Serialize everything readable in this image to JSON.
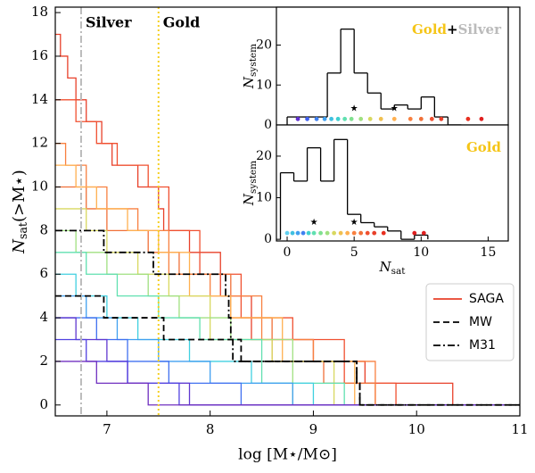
{
  "chart_data": {
    "type": "step",
    "xlabel": "log [M⋆/M⊙]",
    "ylabel": {
      "base": "N",
      "sub": "sat",
      "rest": "(>M⋆)"
    },
    "xlim": [
      6.5,
      11
    ],
    "xticks": [
      7,
      8,
      9,
      10,
      11
    ],
    "ylim": [
      -0.5,
      18.25
    ],
    "yticks": [
      0,
      2,
      4,
      6,
      8,
      10,
      12,
      14,
      16,
      18
    ],
    "thresholds": [
      {
        "name": "Silver",
        "x": 6.75,
        "color": "#bbbbbb",
        "dash": "dashdot"
      },
      {
        "name": "Gold",
        "x": 7.5,
        "color": "#f5d020",
        "dash": "dotted"
      }
    ],
    "saga": {
      "name": "SAGA",
      "color": "#e8402a",
      "curves": [
        {
          "color": "#e8402a",
          "x": [
            6.5,
            6.55,
            6.62,
            6.7,
            6.8,
            6.95,
            7.05,
            7.3,
            7.5,
            7.55,
            7.8,
            8.1,
            8.4,
            9.0,
            9.5,
            10.35
          ],
          "values": [
            17,
            16,
            15,
            14,
            13,
            12,
            11,
            10,
            9,
            8,
            7,
            5,
            3,
            2,
            1,
            0
          ]
        },
        {
          "color": "#f05030",
          "x": [
            6.5,
            6.7,
            6.9,
            7.1,
            7.4,
            7.6,
            7.9,
            8.3,
            8.8,
            9.3,
            9.8
          ],
          "values": [
            14,
            13,
            12,
            11,
            10,
            8,
            6,
            4,
            3,
            1,
            0
          ]
        },
        {
          "color": "#f07038",
          "x": [
            6.5,
            6.8,
            7.0,
            7.4,
            7.7,
            8.2,
            8.6,
            9.1,
            9.6
          ],
          "values": [
            10,
            9,
            8,
            7,
            6,
            4,
            2,
            1,
            0
          ]
        },
        {
          "color": "#f88040",
          "x": [
            6.5,
            6.6,
            6.8,
            7.0,
            7.3,
            7.6,
            8.0,
            8.5,
            9.0,
            9.6
          ],
          "values": [
            12,
            11,
            10,
            9,
            8,
            6,
            5,
            3,
            2,
            0
          ]
        },
        {
          "color": "#ffb050",
          "x": [
            6.5,
            6.7,
            6.9,
            7.2,
            7.5,
            7.8,
            8.2,
            8.7,
            9.4
          ],
          "values": [
            11,
            10,
            9,
            8,
            7,
            5,
            4,
            2,
            0
          ]
        },
        {
          "color": "#d8d860",
          "x": [
            6.5,
            6.8,
            7.0,
            7.3,
            7.6,
            8.0,
            8.6,
            9.2
          ],
          "values": [
            9,
            8,
            7,
            6,
            5,
            3,
            2,
            0
          ]
        },
        {
          "color": "#a0e080",
          "x": [
            6.5,
            6.7,
            7.0,
            7.4,
            7.7,
            8.2,
            8.8
          ],
          "values": [
            8,
            7,
            6,
            5,
            4,
            3,
            0
          ]
        },
        {
          "color": "#60e0b0",
          "x": [
            6.5,
            6.8,
            7.1,
            7.5,
            7.9,
            8.5,
            9.3
          ],
          "values": [
            7,
            6,
            5,
            4,
            3,
            1,
            0
          ]
        },
        {
          "color": "#40d0e0",
          "x": [
            6.5,
            6.7,
            7.0,
            7.3,
            7.8,
            8.4,
            9.0
          ],
          "values": [
            6,
            5,
            4,
            3,
            2,
            1,
            0
          ]
        },
        {
          "color": "#40a0f0",
          "x": [
            6.5,
            6.8,
            7.1,
            7.5,
            8.0,
            8.8
          ],
          "values": [
            5,
            4,
            3,
            2,
            1,
            0
          ]
        },
        {
          "color": "#4070f0",
          "x": [
            6.5,
            6.9,
            7.2,
            7.6,
            8.3
          ],
          "values": [
            4,
            3,
            2,
            1,
            0
          ]
        },
        {
          "color": "#6038d0",
          "x": [
            6.5,
            6.7,
            7.0,
            7.2,
            7.8
          ],
          "values": [
            4,
            3,
            2,
            1,
            0
          ]
        },
        {
          "color": "#5040e0",
          "x": [
            6.5,
            6.8,
            7.2,
            7.7
          ],
          "values": [
            3,
            2,
            1,
            0
          ]
        },
        {
          "color": "#7030c0",
          "x": [
            6.5,
            6.9,
            7.4
          ],
          "values": [
            2,
            1,
            0
          ]
        }
      ]
    },
    "series": [
      {
        "name": "MW",
        "color": "#000000",
        "dash": "dashed",
        "x": [
          6.5,
          6.97,
          7.55,
          8.3,
          9.42,
          9.45
        ],
        "values": [
          5,
          4,
          3,
          2,
          1,
          0
        ]
      },
      {
        "name": "M31",
        "color": "#000000",
        "dash": "dashdot",
        "x": [
          6.5,
          6.97,
          7.45,
          8.15,
          8.18,
          8.2,
          8.22,
          9.42,
          9.45
        ],
        "values": [
          8,
          7,
          6,
          5,
          4,
          3,
          2,
          1,
          0
        ]
      }
    ],
    "insets": [
      {
        "type": "histogram",
        "title_parts": [
          {
            "text": "Gold",
            "color": "#f5c518"
          },
          {
            "text": "+",
            "color": "#000000"
          },
          {
            "text": "Silver",
            "color": "#bbbbbb"
          }
        ],
        "ylabel": {
          "base": "N",
          "sub": "system"
        },
        "xlim": [
          -0.8,
          16.5
        ],
        "ylim": [
          0,
          29.5
        ],
        "yticks": [
          0,
          10,
          20
        ],
        "bins": [
          0,
          1,
          2,
          3,
          4,
          5,
          6,
          7,
          8,
          9,
          10,
          11,
          12,
          13
        ],
        "counts": [
          2,
          2,
          2,
          13,
          24,
          13,
          8,
          4,
          5,
          4,
          7,
          2,
          0
        ],
        "points": {
          "x": [
            0.8,
            1.5,
            2.2,
            2.8,
            3.3,
            3.8,
            4.3,
            4.8,
            5.5,
            6.2,
            7,
            8,
            9.2,
            10,
            10.8,
            11.5,
            13.5,
            14.5
          ],
          "y": [
            1.5,
            1.5,
            1.5,
            1.5,
            1.5,
            1.5,
            1.5,
            1.5,
            1.5,
            1.5,
            1.5,
            1.5,
            1.5,
            1.5,
            1.5,
            1.5,
            1.5,
            1.5
          ],
          "colors": [
            "#6030d0",
            "#4060f0",
            "#4080f0",
            "#40a0f0",
            "#40c0e0",
            "#40d0d0",
            "#60e0b0",
            "#80e090",
            "#a0e080",
            "#d8d860",
            "#f0c050",
            "#ffb050",
            "#f88040",
            "#f07038",
            "#f05030",
            "#e8402a",
            "#e83020",
            "#e02020"
          ]
        },
        "stars": {
          "x": [
            5,
            8
          ],
          "y": [
            4,
            4
          ]
        }
      },
      {
        "type": "histogram",
        "title_parts": [
          {
            "text": "Gold",
            "color": "#f5c518"
          }
        ],
        "ylabel": {
          "base": "N",
          "sub": "system"
        },
        "xlabel": {
          "base": "N",
          "sub": "sat"
        },
        "xlim": [
          -0.8,
          16.5
        ],
        "xticks": [
          0,
          5,
          10,
          15
        ],
        "ylim": [
          -0.4,
          27.5
        ],
        "yticks": [
          0,
          10,
          20
        ],
        "bins": [
          -0.5,
          0.5,
          1.5,
          2.5,
          3.5,
          4.5,
          5.5,
          6.5,
          7.5,
          8.5,
          9.5,
          10.5
        ],
        "counts": [
          16,
          14,
          22,
          14,
          24,
          6,
          4,
          3,
          2,
          0,
          1
        ],
        "points": {
          "x": [
            0,
            0.4,
            0.8,
            1.2,
            1.6,
            2,
            2.5,
            3,
            3.5,
            4,
            4.5,
            5,
            5.5,
            6,
            6.5,
            7.2,
            9.5,
            10.2
          ],
          "y": [
            1.5,
            1.5,
            1.5,
            1.5,
            1.5,
            1.5,
            1.5,
            1.5,
            1.5,
            1.5,
            1.5,
            1.5,
            1.5,
            1.5,
            1.5,
            1.5,
            1.5,
            1.5
          ],
          "colors": [
            "#60d0f0",
            "#40c0e0",
            "#40a0f0",
            "#4080f0",
            "#40d0d0",
            "#60e0b0",
            "#80e090",
            "#a0e080",
            "#d8d860",
            "#f0c050",
            "#ffb050",
            "#f88040",
            "#f07038",
            "#f05030",
            "#e8402a",
            "#e83020",
            "#e02020",
            "#e02020"
          ]
        },
        "stars": {
          "x": [
            2,
            5
          ],
          "y": [
            4,
            4
          ]
        }
      }
    ]
  }
}
